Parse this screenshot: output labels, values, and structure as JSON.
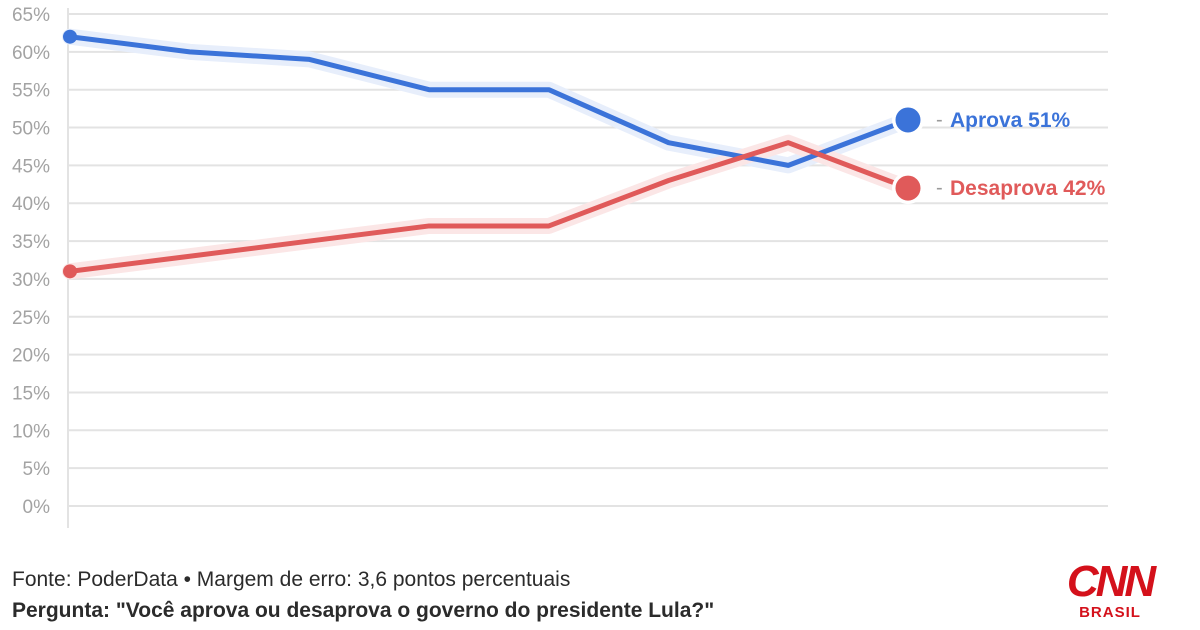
{
  "chart_data": {
    "type": "line",
    "x": [
      1,
      2,
      3,
      4,
      5,
      6,
      7,
      8
    ],
    "ylim": [
      0,
      65
    ],
    "y_ticks": [
      "0%",
      "5%",
      "10%",
      "15%",
      "20%",
      "25%",
      "30%",
      "35%",
      "40%",
      "45%",
      "50%",
      "55%",
      "60%",
      "65%"
    ],
    "grid": true,
    "series": [
      {
        "name": "Aprova",
        "end_label": "Aprova 51%",
        "color": "#3b73d9",
        "halo": "#e7eefb",
        "values": [
          62,
          60,
          59,
          55,
          55,
          48,
          45,
          51
        ]
      },
      {
        "name": "Desaprova",
        "end_label": "Desaprova 42%",
        "color": "#e05a5a",
        "halo": "#fbe6e6",
        "values": [
          31,
          33,
          35,
          37,
          37,
          43,
          48,
          42
        ]
      }
    ]
  },
  "footer": {
    "source": "Fonte: PoderData • Margem de erro: 3,6 pontos percentuais",
    "question": "Pergunta: \"Você aprova ou desaprova o governo do presidente Lula?\""
  },
  "logo": {
    "brand": "CNN",
    "sub": "BRASIL",
    "color": "#d4111b"
  }
}
